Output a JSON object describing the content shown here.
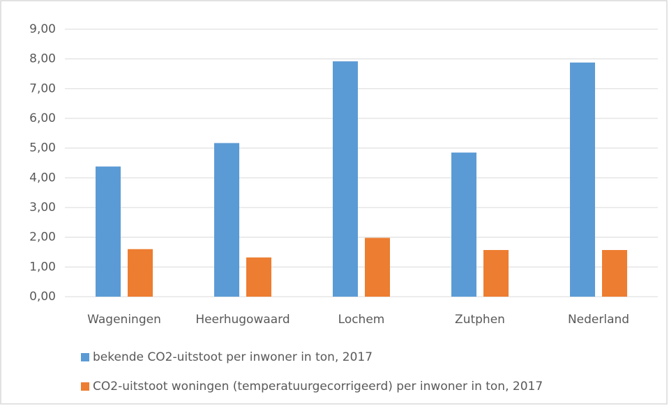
{
  "chart_data": {
    "type": "bar",
    "categories": [
      "Wageningen",
      "Heerhugowaard",
      "Lochem",
      "Zutphen",
      "Nederland"
    ],
    "series": [
      {
        "name": "bekende CO2-uitstoot per inwoner in ton, 2017",
        "color": "#5b9bd5",
        "values": [
          4.38,
          5.17,
          7.92,
          4.85,
          7.88
        ]
      },
      {
        "name": "CO2-uitstoot woningen (temperatuurgecorrigeerd) per inwoner in ton, 2017",
        "color": "#ed7d31",
        "values": [
          1.6,
          1.32,
          1.98,
          1.57,
          1.57
        ]
      }
    ],
    "ylim": [
      0,
      9
    ],
    "yticks": [
      {
        "value": 0,
        "label": "0,00"
      },
      {
        "value": 1,
        "label": "1,00"
      },
      {
        "value": 2,
        "label": "2,00"
      },
      {
        "value": 3,
        "label": "3,00"
      },
      {
        "value": 4,
        "label": "4,00"
      },
      {
        "value": 5,
        "label": "5,00"
      },
      {
        "value": 6,
        "label": "6,00"
      },
      {
        "value": 7,
        "label": "7,00"
      },
      {
        "value": 8,
        "label": "8,00"
      },
      {
        "value": 9,
        "label": "9,00"
      }
    ],
    "grid": true,
    "legend": "bottom"
  }
}
